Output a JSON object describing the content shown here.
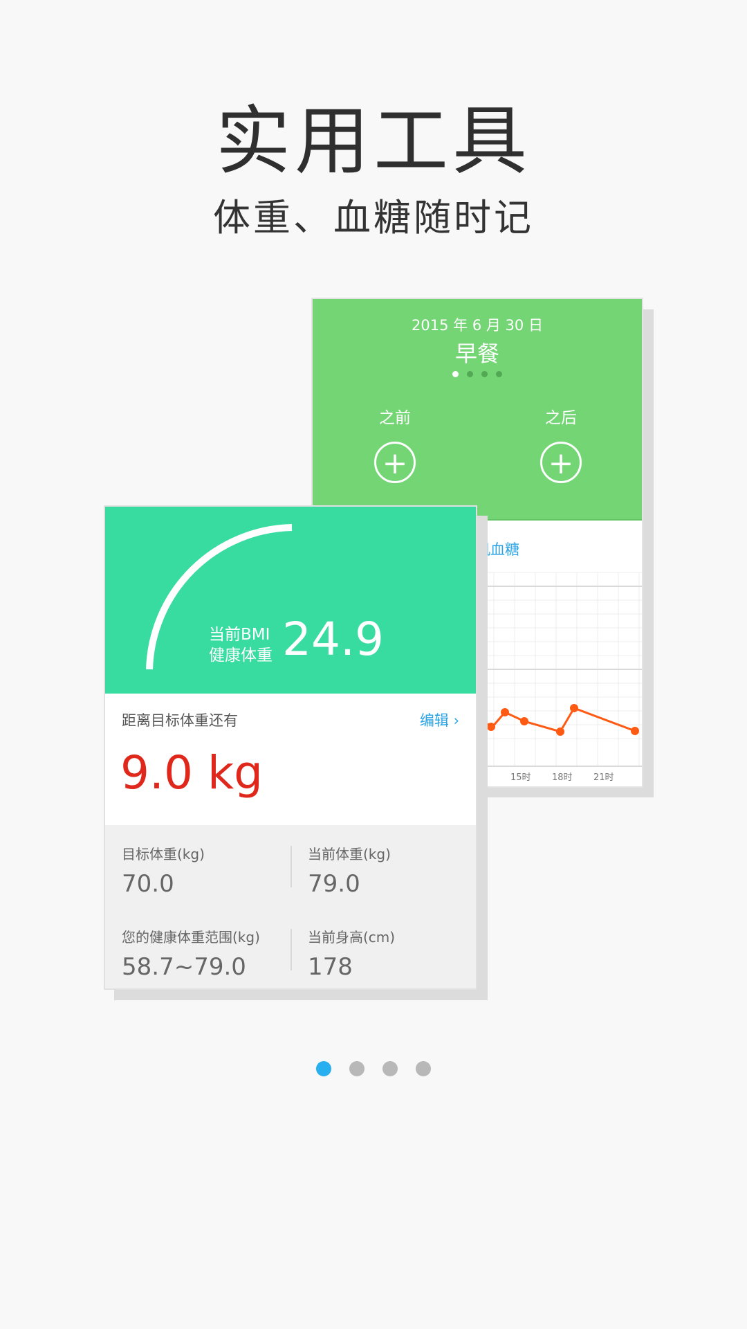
{
  "header": {
    "title": "实用工具",
    "subtitle": "体重、血糖随时记"
  },
  "blood_sugar_card": {
    "date": "2015 年 6 月 30 日",
    "meal": "早餐",
    "meal_pager": {
      "count": 4,
      "active": 0
    },
    "before_label": "之前",
    "after_label": "之后",
    "chart_title": "机血糖",
    "x_ticks": [
      "时",
      "15时",
      "18时",
      "21时"
    ]
  },
  "weight_card": {
    "bmi_label_line1": "当前BMI",
    "bmi_label_line2": "健康体重",
    "bmi_value": "24.9",
    "gap_label": "距离目标体重还有",
    "edit_label": "编辑",
    "gap_value": "9.0 kg",
    "target_weight_label": "目标体重(kg)",
    "target_weight_value": "70.0",
    "current_weight_label": "当前体重(kg)",
    "current_weight_value": "79.0",
    "healthy_range_label": "您的健康体重范围(kg)",
    "healthy_range_value": "58.7~79.0",
    "height_label": "当前身高(cm)",
    "height_value": "178"
  },
  "pager": {
    "count": 4,
    "active": 0
  },
  "colors": {
    "green_header": "#74d575",
    "teal_header": "#38dca1",
    "accent_blue": "#29a3e6",
    "alert_red": "#e0271b",
    "chart_line": "#ff5a14"
  }
}
